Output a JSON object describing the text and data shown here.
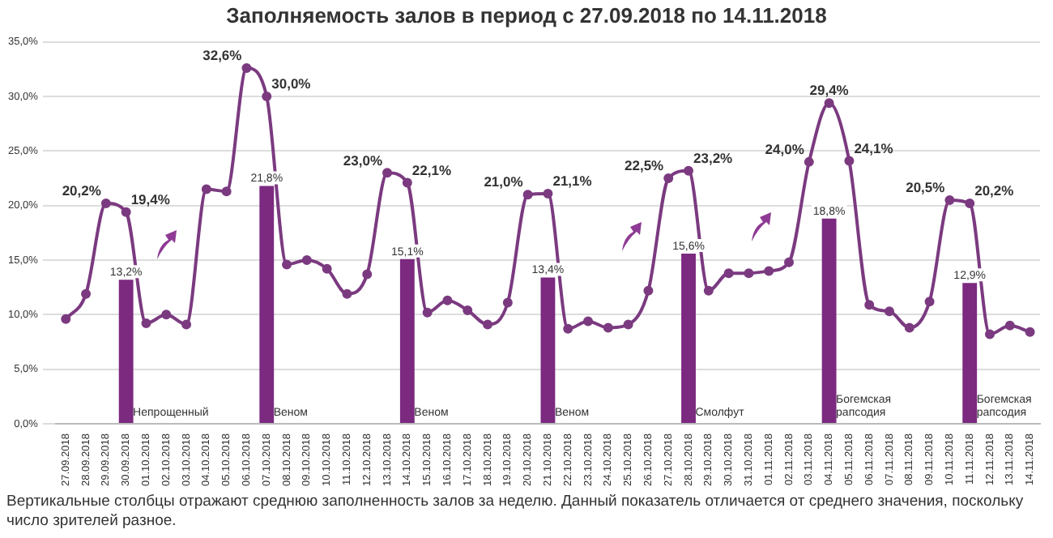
{
  "chart_data": {
    "type": "line",
    "title": "Заполняемость залов в период с 27.09.2018 по 14.11.2018",
    "categories": [
      "27.09.2018",
      "28.09.2018",
      "29.09.2018",
      "30.09.2018",
      "01.10.2018",
      "02.10.2018",
      "03.10.2018",
      "04.10.2018",
      "05.10.2018",
      "06.10.2018",
      "07.10.2018",
      "08.10.2018",
      "09.10.2018",
      "10.10.2018",
      "11.10.2018",
      "12.10.2018",
      "13.10.2018",
      "14.10.2018",
      "15.10.2018",
      "16.10.2018",
      "17.10.2018",
      "18.10.2018",
      "19.10.2018",
      "20.10.2018",
      "21.10.2018",
      "22.10.2018",
      "23.10.2018",
      "24.10.2018",
      "25.10.2018",
      "26.10.2018",
      "27.10.2018",
      "28.10.2018",
      "29.10.2018",
      "30.10.2018",
      "31.10.2018",
      "01.11.2018",
      "02.11.2018",
      "03.11.2018",
      "04.11.2018",
      "05.11.2018",
      "06.11.2018",
      "07.11.2018",
      "08.11.2018",
      "09.11.2018",
      "10.11.2018",
      "11.11.2018",
      "12.11.2018",
      "13.11.2018",
      "14.11.2018"
    ],
    "series": [
      {
        "type": "bar",
        "color": "#7b2a80",
        "values": [
          null,
          null,
          null,
          13.2,
          null,
          null,
          null,
          null,
          null,
          null,
          21.8,
          null,
          null,
          null,
          null,
          null,
          null,
          15.1,
          null,
          null,
          null,
          null,
          null,
          null,
          13.4,
          null,
          null,
          null,
          null,
          null,
          null,
          15.6,
          null,
          null,
          null,
          null,
          null,
          null,
          18.8,
          null,
          null,
          null,
          null,
          null,
          null,
          12.9,
          null,
          null,
          null
        ],
        "value_labels": [
          null,
          null,
          null,
          "13,2%",
          null,
          null,
          null,
          null,
          null,
          null,
          "21,8%",
          null,
          null,
          null,
          null,
          null,
          null,
          "15,1%",
          null,
          null,
          null,
          null,
          null,
          null,
          "13,4%",
          null,
          null,
          null,
          null,
          null,
          null,
          "15,6%",
          null,
          null,
          null,
          null,
          null,
          null,
          "18,8%",
          null,
          null,
          null,
          null,
          null,
          null,
          "12,9%",
          null,
          null,
          null
        ]
      },
      {
        "color": "#7b3a80",
        "values": [
          9.6,
          11.9,
          20.2,
          19.4,
          9.2,
          10.0,
          9.1,
          21.5,
          21.3,
          32.6,
          30.0,
          14.6,
          15.0,
          14.2,
          11.9,
          13.7,
          23.0,
          22.1,
          10.2,
          11.3,
          10.4,
          9.1,
          11.1,
          21.0,
          21.1,
          8.7,
          9.4,
          8.8,
          9.1,
          12.2,
          22.5,
          23.2,
          12.2,
          13.8,
          13.8,
          14.0,
          14.8,
          24.0,
          29.4,
          24.1,
          10.9,
          10.3,
          8.8,
          11.2,
          20.5,
          20.2,
          8.2,
          9.0,
          8.4
        ],
        "value_labels": [
          null,
          null,
          "20,2%",
          "19,4%",
          null,
          null,
          null,
          null,
          null,
          "32,6%",
          "30,0%",
          null,
          null,
          null,
          null,
          null,
          "23,0%",
          "22,1%",
          null,
          null,
          null,
          null,
          null,
          "21,0%",
          "21,1%",
          null,
          null,
          null,
          null,
          null,
          "22,5%",
          "23,2%",
          null,
          null,
          null,
          null,
          null,
          "24,0%",
          "29,4%",
          "24,1%",
          null,
          null,
          null,
          null,
          "20,5%",
          "20,2%",
          null,
          null,
          null
        ]
      }
    ],
    "ylim": [
      0,
      35
    ],
    "yticks": [
      {
        "value": 0,
        "label": "0,0%"
      },
      {
        "value": 5,
        "label": "5,0%"
      },
      {
        "value": 10,
        "label": "10,0%"
      },
      {
        "value": 15,
        "label": "15,0%"
      },
      {
        "value": 20,
        "label": "20,0%"
      },
      {
        "value": 25,
        "label": "25,0%"
      },
      {
        "value": 30,
        "label": "30,0%"
      },
      {
        "value": 35,
        "label": "35,0%"
      }
    ],
    "grid": "y",
    "legend": false,
    "marker": "circle",
    "line_style": "solid",
    "annotations": [
      {
        "text": "Непрощенный",
        "x": "30.09.2018",
        "y": 0
      },
      {
        "text": "Веном",
        "x": "07.10.2018",
        "y": 0
      },
      {
        "text": "Веном",
        "x": "14.10.2018",
        "y": 0
      },
      {
        "text": "Веном",
        "x": "21.10.2018",
        "y": 0
      },
      {
        "text": "Смолфут",
        "x": "28.10.2018",
        "y": 0
      },
      {
        "text": "Богемская рапсодия",
        "x": "04.11.2018",
        "y": 0
      },
      {
        "text": "Богемская рапсодия",
        "x": "11.11.2018",
        "y": 0
      },
      "Вертикальные столбцы отражают среднюю заполненность залов за неделю. Данный показатель отличается от среднего значения, поскольку число зрителей разное."
    ]
  }
}
